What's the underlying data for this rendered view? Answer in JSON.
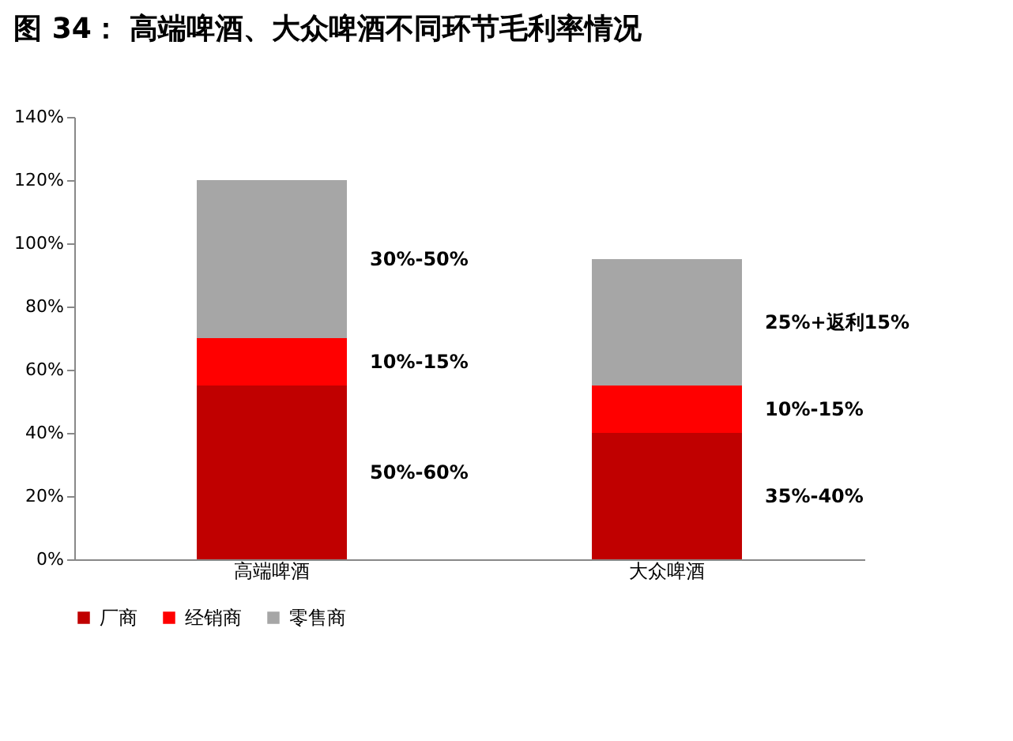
{
  "chart_data": {
    "type": "bar",
    "title": "图 34： 高端啤酒、大众啤酒不同环节毛利率情况",
    "categories": [
      "高端啤酒",
      "大众啤酒"
    ],
    "stacked": true,
    "series": [
      {
        "name": "厂商",
        "color": "#c00000",
        "values": [
          55,
          40
        ]
      },
      {
        "name": "经销商",
        "color": "#ff0000",
        "values": [
          15,
          15
        ]
      },
      {
        "name": "零售商",
        "color": "#a6a6a6",
        "values": [
          50,
          40
        ]
      }
    ],
    "ylim": [
      0,
      140
    ],
    "yticks": [
      {
        "value": 0,
        "label": "0%"
      },
      {
        "value": 20,
        "label": "20%"
      },
      {
        "value": 40,
        "label": "40%"
      },
      {
        "value": 60,
        "label": "60%"
      },
      {
        "value": 80,
        "label": "80%"
      },
      {
        "value": 100,
        "label": "100%"
      },
      {
        "value": 120,
        "label": "120%"
      },
      {
        "value": 140,
        "label": "140%"
      }
    ],
    "grid": false,
    "legend": "bottom",
    "annotations": [
      "30%-50%",
      "10%-15%",
      "50%-60%",
      "25%+返利15%",
      "10%-15%",
      "35%-40%"
    ]
  }
}
